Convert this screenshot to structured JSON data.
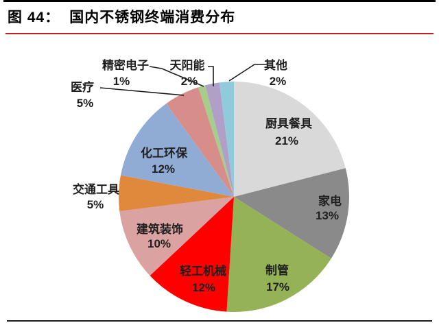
{
  "header": {
    "figure_label": "图 44：",
    "title": "国内不锈钢终端消费分布"
  },
  "colors": {
    "title_text": "#000000",
    "title_underline_red": "#c01f1f",
    "rule_black": "#1a1a1a",
    "leader_line": "#1a1a1a",
    "label_text": "#1f1f1f"
  },
  "chart_data": {
    "type": "pie",
    "title": "国内不锈钢终端消费分布",
    "direction": "clockwise",
    "start_angle_deg": 0,
    "legend": "none",
    "slices": [
      {
        "label": "厨具餐具",
        "value": 21,
        "pct": "21%",
        "color": "#d9d9d9",
        "label_pos": "inside"
      },
      {
        "label": "家电",
        "value": 13,
        "pct": "13%",
        "color": "#8a8a8a",
        "label_pos": "inside"
      },
      {
        "label": "制管",
        "value": 17,
        "pct": "17%",
        "color": "#95b356",
        "label_pos": "inside"
      },
      {
        "label": "轻工机械",
        "value": 12,
        "pct": "12%",
        "color": "#ff0000",
        "label_pos": "inside"
      },
      {
        "label": "建筑装饰",
        "value": 10,
        "pct": "10%",
        "color": "#daa2a0",
        "label_pos": "inside"
      },
      {
        "label": "交通工具",
        "value": 5,
        "pct": "5%",
        "color": "#e0883b",
        "label_pos": "outside"
      },
      {
        "label": "化工环保",
        "value": 12,
        "pct": "12%",
        "color": "#90acd4",
        "label_pos": "inside"
      },
      {
        "label": "医疗",
        "value": 5,
        "pct": "5%",
        "color": "#d78e8b",
        "label_pos": "outside"
      },
      {
        "label": "精密电子",
        "value": 1,
        "pct": "1%",
        "color": "#a6ce8a",
        "label_pos": "outside"
      },
      {
        "label": "天阳能",
        "value": 2,
        "pct": "2%",
        "color": "#b0a0c8",
        "label_pos": "outside"
      },
      {
        "label": "其他",
        "value": 2,
        "pct": "2%",
        "color": "#90cbdb",
        "label_pos": "outside"
      }
    ]
  }
}
